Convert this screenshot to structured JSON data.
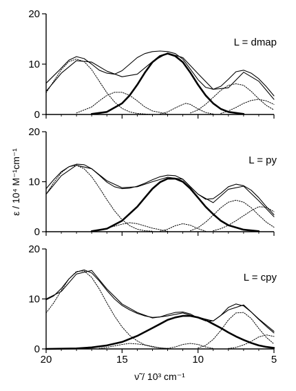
{
  "figure": {
    "ylabel": "ε / 10⁴ M⁻¹cm⁻¹",
    "xlabel_symbol": "ν̃",
    "xlabel_rest": " / 10³ cm⁻¹"
  },
  "chart_data": [
    {
      "type": "line",
      "panel_label": "L = dmap",
      "xlim": [
        20,
        5
      ],
      "ylim": [
        0,
        20
      ],
      "xticks": [
        20,
        15,
        10,
        5
      ],
      "yticks": [
        0,
        10,
        20
      ],
      "series": [
        {
          "style": "solid-thin",
          "x": [
            20,
            19.2,
            18.5,
            18,
            17.5,
            17,
            16.5,
            16,
            15.5,
            15,
            14.5,
            14,
            13.5,
            13,
            12.5,
            12,
            11.5,
            11,
            10.5,
            10,
            9.5,
            9,
            8.5,
            8,
            7.5,
            7,
            6.5,
            6,
            5.5,
            5
          ],
          "y": [
            6.2,
            8.6,
            10.8,
            11.5,
            11.1,
            10,
            8.8,
            8.2,
            8,
            8.7,
            10,
            11.3,
            12.1,
            12.5,
            12.6,
            12.5,
            12.1,
            11,
            9,
            6.9,
            5.4,
            5,
            5.6,
            7,
            8.5,
            8.8,
            8.2,
            7.1,
            5.5,
            3.7
          ]
        },
        {
          "style": "solid-thin",
          "x": [
            20,
            19,
            18,
            17,
            16,
            15,
            14,
            13,
            12,
            11,
            10,
            9,
            8,
            7,
            6,
            5
          ],
          "y": [
            4.6,
            8.2,
            10.7,
            10.4,
            8.6,
            7.5,
            8,
            10.5,
            12.2,
            11.3,
            8.1,
            5,
            5.3,
            8.4,
            6.6,
            3
          ]
        },
        {
          "style": "solid-bold",
          "x": [
            17,
            16,
            15,
            14.5,
            14,
            13.5,
            13,
            12.5,
            12,
            11.5,
            11,
            10.5,
            10,
            9.5,
            9,
            8.5,
            8,
            7
          ],
          "y": [
            0.1,
            0.5,
            2.2,
            3.8,
            5.9,
            8.3,
            10.4,
            11.6,
            12.1,
            11.6,
            10.4,
            8.3,
            5.9,
            3.8,
            2.2,
            1.1,
            0.5,
            0.1
          ]
        },
        {
          "style": "dotted",
          "x": [
            20,
            19.5,
            19,
            18.5,
            18,
            17.5,
            17,
            16.5,
            16,
            15.5,
            15,
            14.5,
            14,
            13.5,
            13
          ],
          "y": [
            4.3,
            6.6,
            8.9,
            10.5,
            11,
            10.5,
            8.9,
            6.6,
            4.3,
            2.5,
            1.2,
            0.5,
            0.2,
            0.1,
            0
          ]
        },
        {
          "style": "dotted",
          "x": [
            18,
            17,
            16.5,
            16,
            15.5,
            15,
            14.5,
            14,
            13.5,
            13,
            12
          ],
          "y": [
            0.3,
            1.5,
            2.7,
            3.8,
            4.4,
            4.4,
            3.8,
            2.7,
            1.5,
            0.7,
            0.1
          ]
        },
        {
          "style": "dotted",
          "x": [
            12.5,
            12,
            11.5,
            11,
            10.8,
            10.5,
            10,
            9.5,
            9
          ],
          "y": [
            0.1,
            0.5,
            1.3,
            2,
            2.2,
            2,
            1.1,
            0.4,
            0.1
          ]
        },
        {
          "style": "dotted",
          "x": [
            10.5,
            10,
            9.5,
            9,
            8.5,
            8,
            7.5,
            7,
            6.5,
            6,
            5.5,
            5
          ],
          "y": [
            0.3,
            0.9,
            2,
            3.4,
            4.8,
            5.8,
            6.1,
            5.8,
            4.6,
            3.1,
            1.8,
            0.9
          ]
        },
        {
          "style": "dotted",
          "x": [
            8.5,
            8,
            7.5,
            7,
            6.5,
            6,
            5.5,
            5
          ],
          "y": [
            0.2,
            0.7,
            1.4,
            2.2,
            2.8,
            3,
            2.7,
            2
          ]
        }
      ]
    },
    {
      "type": "line",
      "panel_label": "L = py",
      "xlim": [
        20,
        5
      ],
      "ylim": [
        0,
        20
      ],
      "xticks": [
        20,
        15,
        10,
        5
      ],
      "yticks": [
        0,
        10,
        20
      ],
      "series": [
        {
          "style": "solid-thin",
          "x": [
            20,
            19.5,
            19,
            18.5,
            18,
            17.5,
            17,
            16.5,
            16,
            15.5,
            15,
            14.5,
            14,
            13.5,
            13,
            12.5,
            12,
            11.5,
            11,
            10.5,
            10,
            9.5,
            9,
            8.5,
            8,
            7.5,
            7,
            6.5,
            6,
            5.5,
            5
          ],
          "y": [
            8.6,
            10.4,
            12,
            13,
            13.5,
            13.4,
            12.6,
            11.3,
            9.9,
            9,
            8.6,
            8.7,
            9.1,
            9.7,
            10.4,
            11,
            11.3,
            11.2,
            10.5,
            9,
            7.5,
            6.5,
            6.6,
            7.7,
            9,
            9.5,
            9.2,
            8.3,
            6.8,
            5,
            3.4
          ]
        },
        {
          "style": "solid-thin",
          "x": [
            20,
            19,
            18,
            17,
            16,
            15,
            14,
            13,
            12,
            11,
            10,
            9,
            8,
            7,
            6,
            5
          ],
          "y": [
            7.5,
            11.2,
            13.3,
            12.6,
            10.2,
            8.8,
            9,
            10,
            10.9,
            10.5,
            7.5,
            5.8,
            8.5,
            9.1,
            6.2,
            3
          ]
        },
        {
          "style": "solid-bold",
          "x": [
            17,
            16,
            15,
            14,
            13.5,
            13,
            12.5,
            12,
            11.5,
            11,
            10.5,
            10,
            9.5,
            9,
            8.5,
            8,
            7,
            6
          ],
          "y": [
            0.1,
            0.6,
            2.2,
            5,
            6.8,
            8.6,
            9.9,
            10.6,
            10.6,
            10,
            8.6,
            6.8,
            5,
            3.5,
            2.2,
            1.3,
            0.4,
            0.1
          ]
        },
        {
          "style": "dotted",
          "x": [
            20,
            19.5,
            19,
            18.5,
            18,
            17.5,
            17,
            16.5,
            16,
            15.5,
            15,
            14.5,
            14,
            13.5,
            13
          ],
          "y": [
            7.5,
            9.8,
            11.8,
            13,
            13.3,
            12.6,
            11,
            8.8,
            6.4,
            4.2,
            2.4,
            1.2,
            0.5,
            0.2,
            0.1
          ]
        },
        {
          "style": "dotted",
          "x": [
            17,
            16,
            15,
            14.5,
            14,
            13,
            12
          ],
          "y": [
            0.1,
            0.7,
            1.5,
            1.8,
            1.6,
            0.7,
            0.1
          ]
        },
        {
          "style": "dotted",
          "x": [
            12.5,
            12,
            11.5,
            11,
            10.5,
            10,
            9.5
          ],
          "y": [
            0.1,
            0.5,
            1.2,
            1.6,
            1.3,
            0.6,
            0.1
          ]
        },
        {
          "style": "dotted",
          "x": [
            10.5,
            10,
            9.5,
            9,
            8.5,
            8,
            7.5,
            7,
            6.5,
            6,
            5.5,
            5
          ],
          "y": [
            0.2,
            0.8,
            1.9,
            3.3,
            4.8,
            5.9,
            6.3,
            5.9,
            4.8,
            3.3,
            1.9,
            0.9
          ]
        },
        {
          "style": "dotted",
          "x": [
            9,
            8.5,
            8,
            7.5,
            7,
            6.5,
            6,
            5.5,
            5
          ],
          "y": [
            0.2,
            0.6,
            1.3,
            2.2,
            3.2,
            4.2,
            5,
            4.9,
            4
          ]
        }
      ]
    },
    {
      "type": "line",
      "panel_label": "L = cpy",
      "xlim": [
        20,
        5
      ],
      "ylim": [
        0,
        20
      ],
      "xticks": [
        20,
        15,
        10,
        5
      ],
      "yticks": [
        0,
        10,
        20
      ],
      "series": [
        {
          "style": "solid-thin",
          "x": [
            20,
            19.5,
            19,
            18.5,
            18,
            17.5,
            17,
            16.5,
            16,
            15.5,
            15,
            14.5,
            14,
            13.5,
            13,
            12.5,
            12,
            11.5,
            11,
            10.5,
            10,
            9.5,
            9,
            8.5,
            8,
            7.5,
            7,
            6.5,
            6,
            5.5,
            5
          ],
          "y": [
            9.8,
            10.6,
            12.1,
            14,
            15.4,
            15.8,
            15.2,
            13.6,
            11.7,
            10,
            8.7,
            7.8,
            7.1,
            6.6,
            6.3,
            6.4,
            6.9,
            7.3,
            7.4,
            7,
            6.2,
            5.6,
            5.6,
            6.7,
            8.3,
            9,
            8.6,
            7.4,
            5.9,
            4.5,
            3.2
          ]
        },
        {
          "style": "solid-thin",
          "x": [
            20,
            19,
            18,
            17,
            16,
            15,
            14,
            13,
            12,
            11,
            10,
            9,
            8,
            7,
            6,
            5
          ],
          "y": [
            10,
            11.5,
            15,
            15.7,
            12,
            9,
            7.3,
            6.2,
            6.6,
            7.2,
            6.3,
            5.6,
            7.8,
            8.8,
            6,
            3.5
          ]
        },
        {
          "style": "solid-bold",
          "x": [
            20,
            18,
            17,
            16,
            15,
            14,
            13,
            12.5,
            12,
            11.5,
            11,
            10.5,
            10,
            9.5,
            9,
            8.5,
            8,
            7.5,
            7,
            6.5,
            6,
            5.5,
            5
          ],
          "y": [
            0,
            0.1,
            0.3,
            0.7,
            1.4,
            2.6,
            4.2,
            5,
            5.8,
            6.3,
            6.6,
            6.6,
            6.3,
            5.8,
            5,
            4.2,
            3.3,
            2.5,
            1.8,
            1.2,
            0.7,
            0.4,
            0.2
          ]
        },
        {
          "style": "dotted",
          "x": [
            20,
            19.5,
            19,
            18.5,
            18,
            17.5,
            17,
            16.5,
            16,
            15.5,
            15,
            14.5,
            14,
            13.5,
            13,
            12.5,
            12
          ],
          "y": [
            7.2,
            9.2,
            11.7,
            14,
            15.5,
            15.6,
            14.3,
            12,
            9.2,
            6.6,
            4.4,
            2.7,
            1.6,
            0.8,
            0.4,
            0.2,
            0.1
          ]
        },
        {
          "style": "dotted",
          "x": [
            16.5,
            16,
            15.5,
            15,
            14.5,
            14,
            13.5,
            13,
            12.5,
            12
          ],
          "y": [
            0.1,
            0.3,
            0.6,
            0.9,
            1.1,
            1,
            0.8,
            0.5,
            0.2,
            0.1
          ]
        },
        {
          "style": "dotted",
          "x": [
            12,
            11.5,
            11,
            10.5,
            10,
            9.5,
            9
          ],
          "y": [
            0.1,
            0.4,
            0.9,
            1.1,
            0.9,
            0.4,
            0.1
          ]
        },
        {
          "style": "dotted",
          "x": [
            10,
            9.5,
            9,
            8.5,
            8,
            7.5,
            7,
            6.5,
            6,
            5.5,
            5
          ],
          "y": [
            0.2,
            0.7,
            1.9,
            3.7,
            5.8,
            7.2,
            7.3,
            6.1,
            4.1,
            2.3,
            1
          ]
        },
        {
          "style": "dotted",
          "x": [
            8,
            7.5,
            7,
            6.5,
            6,
            5.5,
            5
          ],
          "y": [
            0.1,
            0.3,
            0.8,
            1.5,
            2.4,
            2.8,
            2.5
          ]
        }
      ]
    }
  ]
}
